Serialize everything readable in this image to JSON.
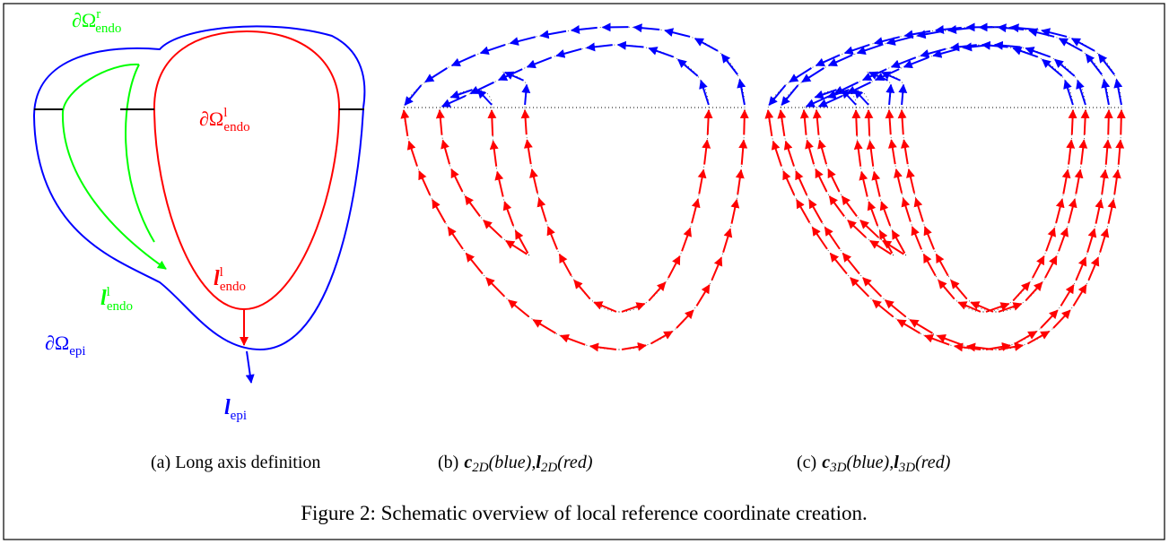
{
  "panel_a": {
    "labels": {
      "rv_endo": {
        "symbol": "∂Ω",
        "sup": "r",
        "sub": "endo"
      },
      "lv_endo": {
        "symbol": "∂Ω",
        "sup": "l",
        "sub": "endo"
      },
      "l_endo_red": {
        "symbol": "l",
        "sup": "l",
        "sub": "endo"
      },
      "l_endo_green": {
        "symbol": "l",
        "sup": "l",
        "sub": "endo"
      },
      "epi": {
        "symbol": "∂Ω",
        "sub": "epi"
      },
      "l_epi": {
        "symbol": "l",
        "sub": "epi"
      }
    },
    "caption": "(a) Long axis definition"
  },
  "panel_b": {
    "caption": {
      "tag": "(b)",
      "c": "c",
      "c_sub": "2D",
      "c_note": "(blue),",
      "l": "l",
      "l_sub": "2D",
      "l_note": "(red)"
    }
  },
  "panel_c": {
    "caption": {
      "tag": "(c)",
      "c": "c",
      "c_sub": "3D",
      "c_note": "(blue),",
      "l": "l",
      "l_sub": "3D",
      "l_note": "(red)"
    }
  },
  "figure_caption": "Figure 2: Schematic overview of local reference coordinate creation."
}
